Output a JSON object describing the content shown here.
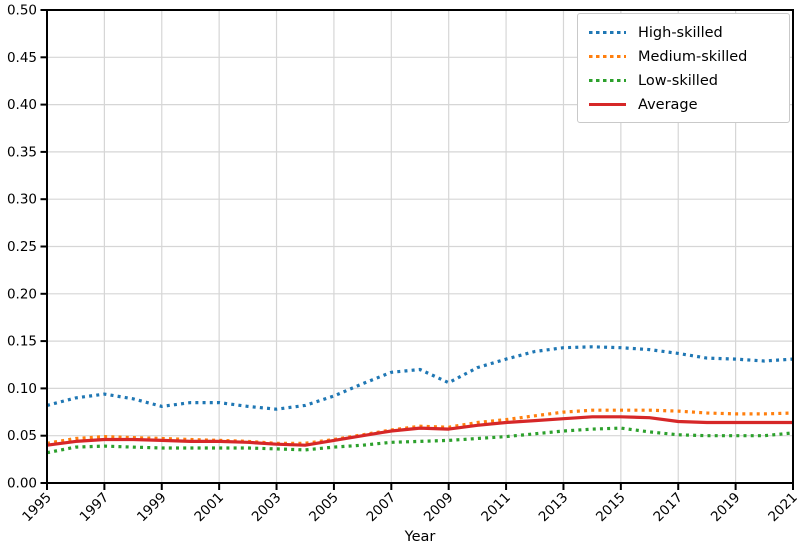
{
  "colors": {
    "background": "#ffffff",
    "grid": "#d6d6d6",
    "spine": "#000000",
    "tick_label": "#000000",
    "legend_border": "#c9c9c9"
  },
  "chart_data": {
    "type": "line",
    "title": "",
    "xlabel": "Year",
    "ylabel": "",
    "x": [
      1995,
      1996,
      1997,
      1998,
      1999,
      2000,
      2001,
      2002,
      2003,
      2004,
      2005,
      2006,
      2007,
      2008,
      2009,
      2010,
      2011,
      2012,
      2013,
      2014,
      2015,
      2016,
      2017,
      2018,
      2019,
      2020,
      2021
    ],
    "xtick_labels": [
      "1995",
      "1997",
      "1999",
      "2001",
      "2003",
      "2005",
      "2007",
      "2009",
      "2011",
      "2013",
      "2015",
      "2017",
      "2019",
      "2021"
    ],
    "ylim": [
      0.0,
      0.5
    ],
    "ytick_interval": 0.05,
    "ytick_labels": [
      "0.00",
      "0.05",
      "0.10",
      "0.15",
      "0.20",
      "0.25",
      "0.30",
      "0.35",
      "0.40",
      "0.45",
      "0.50"
    ],
    "grid": true,
    "legend_position": "upper-right",
    "series": [
      {
        "name": "High-skilled",
        "color": "#1f77b4",
        "line_style": "dotted",
        "values": [
          0.082,
          0.09,
          0.094,
          0.089,
          0.081,
          0.085,
          0.085,
          0.081,
          0.078,
          0.082,
          0.092,
          0.105,
          0.117,
          0.12,
          0.106,
          0.122,
          0.131,
          0.139,
          0.143,
          0.144,
          0.143,
          0.141,
          0.137,
          0.132,
          0.131,
          0.129,
          0.131
        ]
      },
      {
        "name": "Medium-skilled",
        "color": "#ff7f0e",
        "line_style": "dotted",
        "values": [
          0.042,
          0.047,
          0.049,
          0.048,
          0.047,
          0.046,
          0.045,
          0.044,
          0.042,
          0.042,
          0.046,
          0.051,
          0.056,
          0.06,
          0.059,
          0.064,
          0.067,
          0.071,
          0.075,
          0.077,
          0.077,
          0.077,
          0.076,
          0.074,
          0.073,
          0.073,
          0.074
        ]
      },
      {
        "name": "Low-skilled",
        "color": "#2ca02c",
        "line_style": "dotted",
        "values": [
          0.032,
          0.038,
          0.039,
          0.038,
          0.037,
          0.037,
          0.037,
          0.037,
          0.036,
          0.035,
          0.038,
          0.04,
          0.043,
          0.044,
          0.045,
          0.047,
          0.049,
          0.052,
          0.055,
          0.057,
          0.058,
          0.054,
          0.051,
          0.05,
          0.05,
          0.05,
          0.053
        ]
      },
      {
        "name": "Average",
        "color": "#d62728",
        "line_style": "solid",
        "values": [
          0.04,
          0.044,
          0.046,
          0.046,
          0.045,
          0.044,
          0.044,
          0.043,
          0.041,
          0.04,
          0.045,
          0.05,
          0.055,
          0.058,
          0.057,
          0.061,
          0.064,
          0.066,
          0.068,
          0.07,
          0.07,
          0.069,
          0.065,
          0.064,
          0.064,
          0.064,
          0.064
        ]
      }
    ]
  }
}
